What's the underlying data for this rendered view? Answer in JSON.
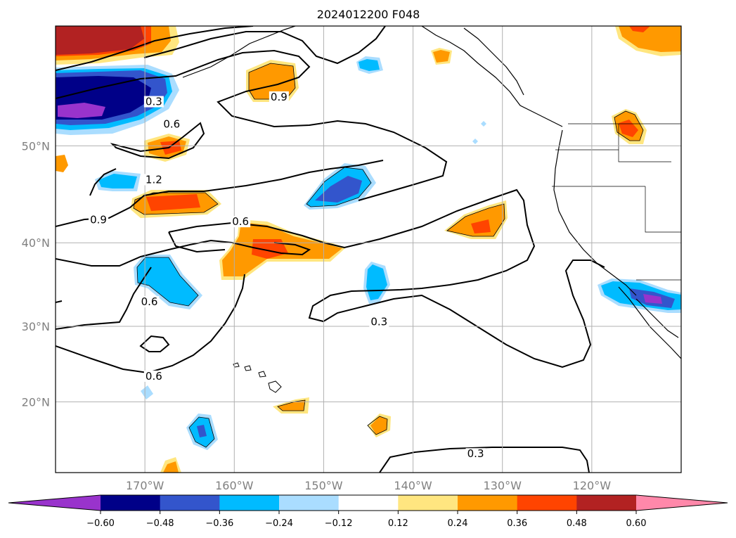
{
  "chart_data": {
    "type": "contour",
    "title": "2024012200 F048",
    "projection": "Mercator",
    "xlim": [
      -180,
      -110
    ],
    "ylim": [
      10,
      60
    ],
    "grid": true,
    "lon_ticks": [
      -170,
      -160,
      -150,
      -140,
      -130,
      -120
    ],
    "lon_tick_labels": [
      "170°W",
      "160°W",
      "150°W",
      "140°W",
      "130°W",
      "120°W"
    ],
    "lat_ticks": [
      20,
      30,
      40,
      50
    ],
    "lat_tick_labels": [
      "20°N",
      "30°N",
      "40°N",
      "50°N"
    ],
    "colorbar": {
      "orientation": "horizontal",
      "extend": "both",
      "levels": [
        -0.6,
        -0.48,
        -0.36,
        -0.24,
        -0.12,
        0.12,
        0.24,
        0.36,
        0.48,
        0.6
      ],
      "level_labels": [
        "−0.60",
        "−0.48",
        "−0.36",
        "−0.24",
        "−0.12",
        "0.12",
        "0.24",
        "0.36",
        "0.48",
        "0.60"
      ],
      "colors": [
        "#9933cc",
        "#000088",
        "#3355cc",
        "#00bbff",
        "#aaddff",
        "#ffffff",
        "#ffe680",
        "#ff9900",
        "#ff4400",
        "#b22222",
        "#ff88aa"
      ]
    },
    "contour_labels": [
      {
        "text": "0.3",
        "lon": -169.0,
        "lat": 53.8
      },
      {
        "text": "0.6",
        "lon": -167.0,
        "lat": 51.8
      },
      {
        "text": "1.2",
        "lon": -169.0,
        "lat": 46.5
      },
      {
        "text": "0.9",
        "lon": -155.0,
        "lat": 54.2
      },
      {
        "text": "0.9",
        "lon": -175.2,
        "lat": 42.3
      },
      {
        "text": "0.6",
        "lon": -159.3,
        "lat": 42.1
      },
      {
        "text": "0.6",
        "lon": -169.5,
        "lat": 32.8
      },
      {
        "text": "0.3",
        "lon": -143.8,
        "lat": 30.3
      },
      {
        "text": "0.6",
        "lon": -169.0,
        "lat": 23.2
      },
      {
        "text": "0.3",
        "lon": -133.0,
        "lat": 12.4
      }
    ]
  }
}
